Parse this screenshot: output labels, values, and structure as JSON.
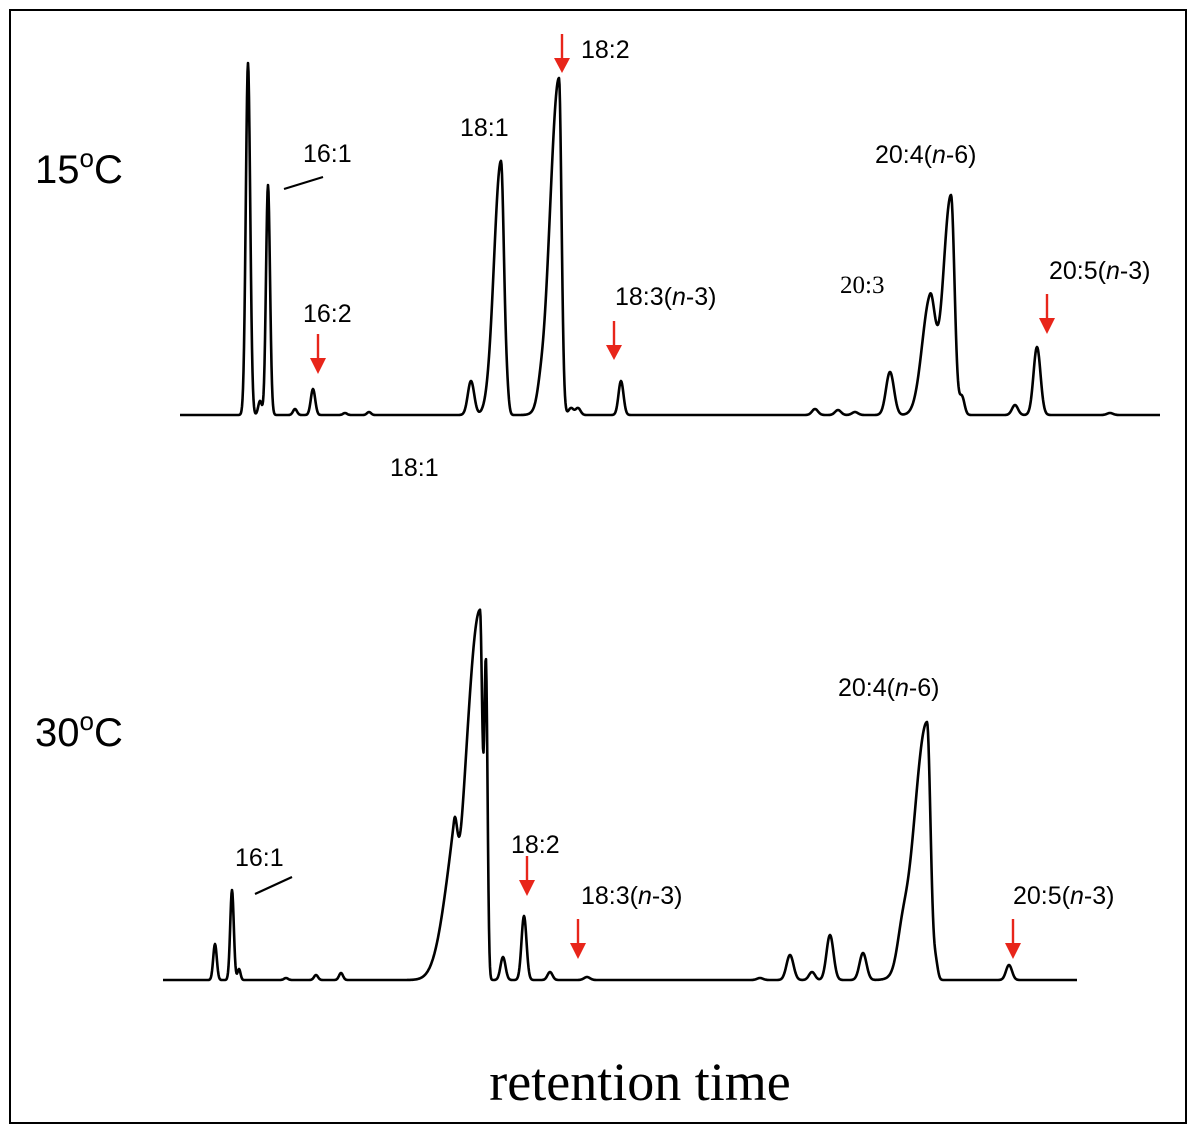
{
  "chart_data": {
    "type": "line",
    "subtype": "chromatogram",
    "xlabel": "retention time",
    "colors": {
      "trace": "#000000",
      "arrow": "#e8251a"
    },
    "panels": [
      {
        "label": "15",
        "label_sup": "o",
        "label_unit": "C",
        "peaks": [
          {
            "x": 248,
            "h": 352,
            "w": 2.2
          },
          {
            "x": 260,
            "h": 14,
            "w": 1.8
          },
          {
            "x": 268,
            "h": 230,
            "w": 2.0
          },
          {
            "x": 295,
            "h": 6,
            "w": 2
          },
          {
            "x": 313,
            "h": 26,
            "w": 2.2
          },
          {
            "x": 345,
            "h": 2,
            "w": 2
          },
          {
            "x": 369,
            "h": 3,
            "w": 2
          },
          {
            "x": 471,
            "h": 34,
            "w": 3.2
          },
          {
            "x": 501,
            "h": 254,
            "w": 3.0,
            "wl": 7
          },
          {
            "x": 507,
            "h": 15,
            "w": 1.8
          },
          {
            "x": 540,
            "h": 8,
            "w": 3
          },
          {
            "x": 559,
            "h": 337,
            "w": 2.5,
            "wl": 9
          },
          {
            "x": 571,
            "h": 7,
            "w": 2.5
          },
          {
            "x": 578,
            "h": 7,
            "w": 2.5
          },
          {
            "x": 621,
            "h": 34,
            "w": 2.5
          },
          {
            "x": 815,
            "h": 6,
            "w": 3
          },
          {
            "x": 838,
            "h": 5,
            "w": 3
          },
          {
            "x": 855,
            "h": 3,
            "w": 3
          },
          {
            "x": 890,
            "h": 43,
            "w": 4
          },
          {
            "x": 930,
            "h": 114,
            "w": 5,
            "wl": 8
          },
          {
            "x": 951,
            "h": 220,
            "w": 3.5,
            "wl": 8
          },
          {
            "x": 962,
            "h": 18,
            "w": 2.5
          },
          {
            "x": 1015,
            "h": 10,
            "w": 3
          },
          {
            "x": 1037,
            "h": 68,
            "w": 3.5
          },
          {
            "x": 1110,
            "h": 2,
            "w": 3
          }
        ],
        "labels": [
          {
            "text": "16:1",
            "name": "label-16-1"
          },
          {
            "text": "16:2",
            "name": "label-16-2"
          },
          {
            "text": "18:1",
            "name": "label-18-1"
          },
          {
            "text": "18:2",
            "name": "label-18-2"
          },
          {
            "text_pre": "18:3(",
            "text_it": "n",
            "text_post": "-3)",
            "name": "label-18-3"
          },
          {
            "text": "20:3",
            "name": "label-20-3"
          },
          {
            "text_pre": "20:4(",
            "text_it": "n",
            "text_post": "-6)",
            "name": "label-20-4"
          },
          {
            "text_pre": "20:5(",
            "text_it": "n",
            "text_post": "-3)",
            "name": "label-20-5"
          }
        ]
      },
      {
        "label": "30",
        "label_sup": "o",
        "label_unit": "C",
        "peaks": [
          {
            "x": 215,
            "h": 36,
            "w": 1.8
          },
          {
            "x": 232,
            "h": 90,
            "w": 1.8
          },
          {
            "x": 239,
            "h": 11,
            "w": 1.5
          },
          {
            "x": 286,
            "h": 2,
            "w": 2
          },
          {
            "x": 316,
            "h": 5,
            "w": 2
          },
          {
            "x": 341,
            "h": 7,
            "w": 2
          },
          {
            "x": 454,
            "h": 93,
            "w": 3,
            "wl": 12
          },
          {
            "x": 480,
            "h": 370,
            "w": 2.5,
            "wl": 14
          },
          {
            "x": 486,
            "h": 300,
            "w": 1.6
          },
          {
            "x": 503,
            "h": 23,
            "w": 2.5
          },
          {
            "x": 524,
            "h": 64,
            "w": 2.5
          },
          {
            "x": 550,
            "h": 8,
            "w": 2.5
          },
          {
            "x": 587,
            "h": 3,
            "w": 3
          },
          {
            "x": 760,
            "h": 2,
            "w": 3
          },
          {
            "x": 790,
            "h": 25,
            "w": 3.5
          },
          {
            "x": 812,
            "h": 8,
            "w": 3
          },
          {
            "x": 830,
            "h": 45,
            "w": 3.5
          },
          {
            "x": 863,
            "h": 27,
            "w": 3.5
          },
          {
            "x": 902,
            "h": 25,
            "w": 5
          },
          {
            "x": 927,
            "h": 258,
            "w": 3.5,
            "wl": 13
          },
          {
            "x": 936,
            "h": 14,
            "w": 2
          },
          {
            "x": 1009,
            "h": 15,
            "w": 3
          }
        ],
        "labels": [
          {
            "text": "16:1",
            "name": "label-16-1"
          },
          {
            "text": "18:1",
            "name": "label-18-1"
          },
          {
            "text": "18:2",
            "name": "label-18-2"
          },
          {
            "text_pre": "18:3(",
            "text_it": "n",
            "text_post": "-3)",
            "name": "label-18-3"
          },
          {
            "text_pre": "20:4(",
            "text_it": "n",
            "text_post": "-6)",
            "name": "label-20-4"
          },
          {
            "text_pre": "20:5(",
            "text_it": "n",
            "text_post": "-3)",
            "name": "label-20-5"
          }
        ]
      }
    ]
  }
}
